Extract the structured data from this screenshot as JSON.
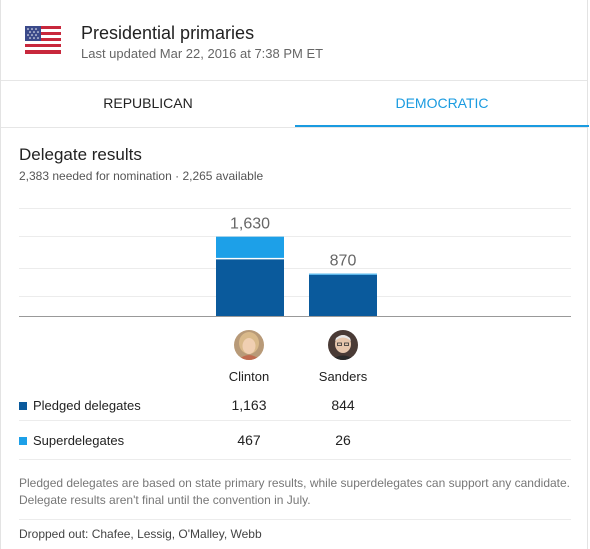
{
  "header": {
    "title": "Presidential primaries",
    "updated": "Last updated Mar 22, 2016 at 7:38 PM ET",
    "flag_icon": "us-flag-icon"
  },
  "tabs": [
    {
      "label": "REPUBLICAN",
      "active": false
    },
    {
      "label": "DEMOCRATIC",
      "active": true
    }
  ],
  "section": {
    "title": "Delegate results",
    "subtitle": "2,383 needed for nomination · 2,265 available"
  },
  "colors": {
    "pledged": "#0a5a9c",
    "super": "#1da0e8",
    "accent": "#1a9be0"
  },
  "chart_data": {
    "type": "bar",
    "stacked": true,
    "categories": [
      "Clinton",
      "Sanders"
    ],
    "series": [
      {
        "name": "Pledged delegates",
        "values": [
          1163,
          844
        ]
      },
      {
        "name": "Superdelegates",
        "values": [
          467,
          26
        ]
      }
    ],
    "totals": [
      "1,630",
      "870"
    ],
    "ylim": [
      0,
      2383
    ],
    "grid": true
  },
  "candidates": [
    {
      "name": "Clinton",
      "pledged": "1,163",
      "super": "467",
      "avatar_icon": "clinton-avatar"
    },
    {
      "name": "Sanders",
      "pledged": "844",
      "super": "26",
      "avatar_icon": "sanders-avatar"
    }
  ],
  "legend": {
    "pledged_label": "Pledged delegates",
    "super_label": "Superdelegates"
  },
  "footnote": "Pledged delegates are based on state primary results, while superdelegates can support any candidate. Delegate results aren't final until the convention in July.",
  "dropped": "Dropped out: Chafee, Lessig, O'Malley, Webb"
}
